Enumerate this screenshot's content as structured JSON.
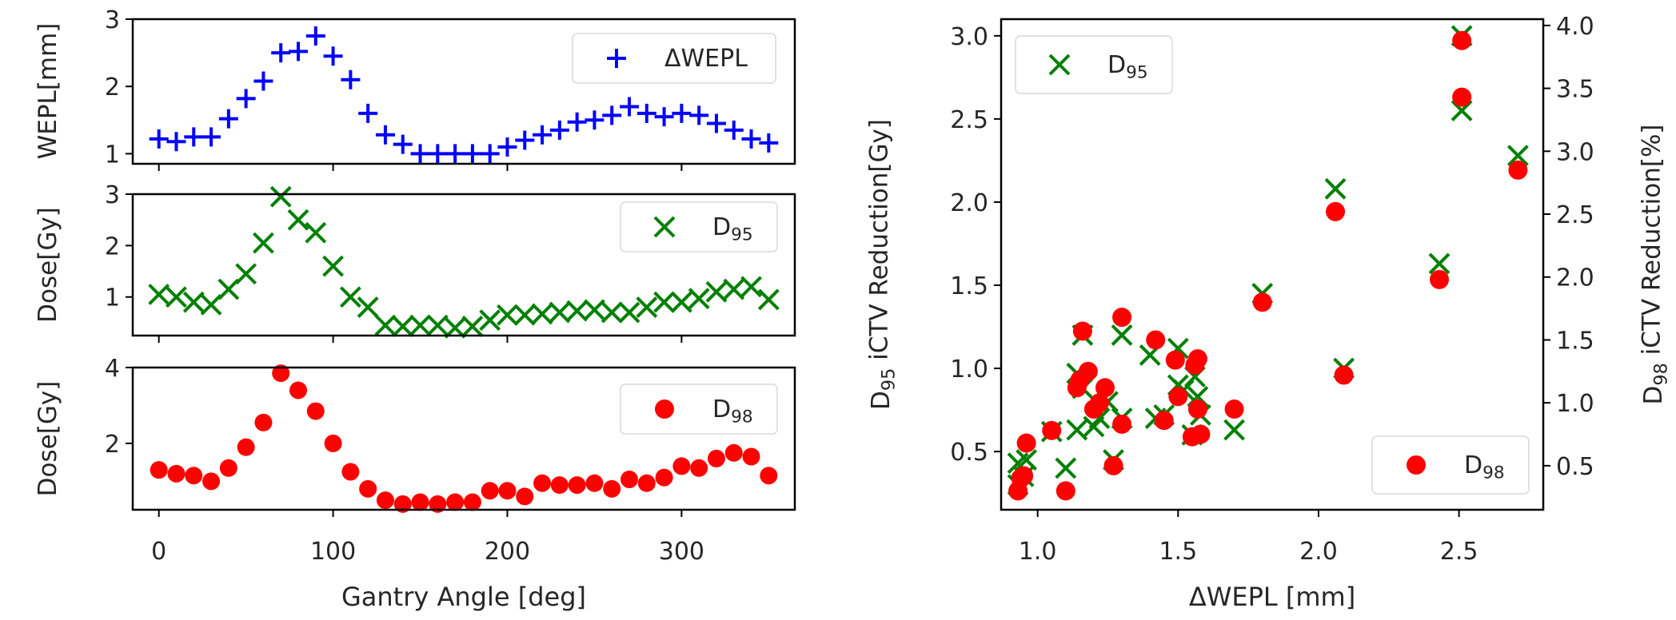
{
  "chart_data": [
    {
      "type": "scatter",
      "panel": "left-top",
      "xlabel": "",
      "ylabel": "WEPL[mm]",
      "xlim": [
        -15,
        365
      ],
      "ylim": [
        0.85,
        3.0
      ],
      "yticks": [
        1,
        2,
        3
      ],
      "legend": "top-right",
      "series": [
        {
          "name": "ΔWEPL",
          "marker": "plus",
          "color": "#0000ff",
          "x": [
            0,
            10,
            20,
            30,
            40,
            50,
            60,
            70,
            80,
            90,
            100,
            110,
            120,
            130,
            140,
            150,
            160,
            170,
            180,
            190,
            200,
            210,
            220,
            230,
            240,
            250,
            260,
            270,
            280,
            290,
            300,
            310,
            320,
            330,
            340,
            350
          ],
          "y": [
            1.22,
            1.18,
            1.25,
            1.25,
            1.52,
            1.82,
            2.08,
            2.5,
            2.52,
            2.75,
            2.45,
            2.1,
            1.6,
            1.28,
            1.14,
            1.0,
            1.0,
            1.0,
            1.0,
            1.0,
            1.1,
            1.2,
            1.28,
            1.35,
            1.47,
            1.5,
            1.57,
            1.7,
            1.6,
            1.55,
            1.6,
            1.57,
            1.45,
            1.35,
            1.22,
            1.16
          ]
        }
      ]
    },
    {
      "type": "scatter",
      "panel": "left-middle",
      "xlabel": "",
      "ylabel": "Dose[Gy]",
      "xlim": [
        -15,
        365
      ],
      "ylim": [
        0.25,
        3.0
      ],
      "yticks": [
        1,
        2,
        3
      ],
      "legend": "top-right",
      "series": [
        {
          "name": "D95",
          "marker": "x",
          "color": "#008000",
          "x": [
            0,
            10,
            20,
            30,
            40,
            50,
            60,
            70,
            80,
            90,
            100,
            110,
            120,
            130,
            140,
            150,
            160,
            170,
            180,
            190,
            200,
            210,
            220,
            230,
            240,
            250,
            260,
            270,
            280,
            290,
            300,
            310,
            320,
            330,
            340,
            350
          ],
          "y": [
            1.05,
            1.0,
            0.9,
            0.85,
            1.15,
            1.45,
            2.05,
            2.95,
            2.5,
            2.25,
            1.6,
            1.0,
            0.8,
            0.45,
            0.43,
            0.45,
            0.45,
            0.4,
            0.43,
            0.55,
            0.65,
            0.65,
            0.67,
            0.7,
            0.73,
            0.75,
            0.7,
            0.7,
            0.8,
            0.9,
            0.9,
            0.97,
            1.1,
            1.15,
            1.2,
            0.95
          ]
        }
      ]
    },
    {
      "type": "scatter",
      "panel": "left-bottom",
      "xlabel": "Gantry Angle [deg]",
      "ylabel": "Dose[Gy]",
      "xlim": [
        -15,
        365
      ],
      "ylim": [
        0.25,
        4.0
      ],
      "yticks": [
        2,
        4
      ],
      "xticks": [
        0,
        100,
        200,
        300
      ],
      "legend": "top-right",
      "series": [
        {
          "name": "D98",
          "marker": "circle",
          "color": "#ff0000",
          "x": [
            0,
            10,
            20,
            30,
            40,
            50,
            60,
            70,
            80,
            90,
            100,
            110,
            120,
            130,
            140,
            150,
            160,
            170,
            180,
            190,
            200,
            210,
            220,
            230,
            240,
            250,
            260,
            270,
            280,
            290,
            300,
            310,
            320,
            330,
            340,
            350
          ],
          "y": [
            1.3,
            1.2,
            1.15,
            1.0,
            1.35,
            1.9,
            2.55,
            3.85,
            3.4,
            2.85,
            2.0,
            1.25,
            0.8,
            0.5,
            0.4,
            0.45,
            0.4,
            0.45,
            0.45,
            0.75,
            0.75,
            0.6,
            0.95,
            0.9,
            0.9,
            0.95,
            0.8,
            1.05,
            0.95,
            1.1,
            1.4,
            1.35,
            1.6,
            1.75,
            1.65,
            1.15
          ]
        }
      ]
    },
    {
      "type": "scatter",
      "panel": "right",
      "xlabel": "ΔWEPL [mm]",
      "ylabel": "D95 iCTV Reduction[Gy]",
      "ylabel_right": "D98 iCTV Reduction[%]",
      "xlim": [
        0.87,
        2.8
      ],
      "xticks": [
        1.0,
        1.5,
        2.0,
        2.5
      ],
      "ylim": [
        0.15,
        3.1
      ],
      "yticks": [
        0.5,
        1.0,
        1.5,
        2.0,
        2.5,
        3.0
      ],
      "ylim_right": [
        0.15,
        4.05
      ],
      "yticks_right": [
        0.5,
        1.0,
        1.5,
        2.0,
        2.5,
        3.0,
        3.5,
        4.0
      ],
      "legend": [
        "top-left",
        "bottom-right"
      ],
      "series": [
        {
          "name": "D95",
          "marker": "x",
          "color": "#008000",
          "axis": "left",
          "x": [
            0.93,
            0.93,
            0.95,
            0.96,
            1.05,
            1.1,
            1.14,
            1.16,
            1.14,
            1.16,
            1.2,
            1.22,
            1.25,
            1.27,
            1.3,
            1.3,
            1.4,
            1.42,
            1.45,
            1.5,
            1.5,
            1.52,
            1.55,
            1.56,
            1.57,
            1.58,
            1.7,
            1.8,
            2.06,
            2.09,
            2.43,
            2.51,
            2.51,
            2.71
          ],
          "y": [
            0.43,
            0.3,
            0.35,
            0.45,
            0.62,
            0.4,
            0.97,
            1.2,
            0.63,
            0.88,
            0.65,
            0.7,
            0.8,
            0.45,
            0.7,
            1.2,
            1.08,
            0.7,
            0.72,
            0.9,
            1.12,
            0.87,
            0.6,
            0.95,
            0.83,
            0.72,
            0.63,
            1.45,
            2.08,
            1.0,
            1.63,
            2.55,
            3.0,
            2.28
          ]
        },
        {
          "name": "D98",
          "marker": "circle",
          "color": "#ff0000",
          "axis": "right",
          "x": [
            0.93,
            0.94,
            0.95,
            0.96,
            1.05,
            1.1,
            1.14,
            1.15,
            1.16,
            1.18,
            1.2,
            1.22,
            1.24,
            1.27,
            1.3,
            1.3,
            1.42,
            1.45,
            1.49,
            1.5,
            1.55,
            1.56,
            1.57,
            1.57,
            1.58,
            1.7,
            1.8,
            2.06,
            2.09,
            2.43,
            2.51,
            2.51,
            2.71
          ],
          "y": [
            0.3,
            0.4,
            0.42,
            0.68,
            0.78,
            0.3,
            1.12,
            1.18,
            1.57,
            1.25,
            0.95,
            1.0,
            1.12,
            0.5,
            0.83,
            1.68,
            1.5,
            0.86,
            1.34,
            1.05,
            0.73,
            1.3,
            1.35,
            0.95,
            0.75,
            0.95,
            1.8,
            2.52,
            1.22,
            1.98,
            3.43,
            3.88,
            2.85
          ]
        }
      ]
    }
  ]
}
